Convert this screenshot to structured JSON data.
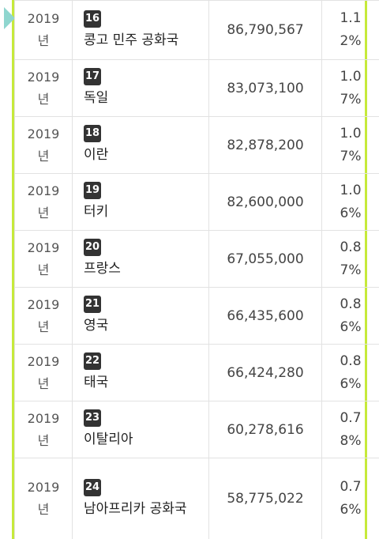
{
  "rows": [
    {
      "year": "2019",
      "year_suffix": "년",
      "rank": "16",
      "name": "콩고 민주 공화국",
      "population": "86,790,567",
      "pct_a": "1.1",
      "pct_b": "2%"
    },
    {
      "year": "2019",
      "year_suffix": "년",
      "rank": "17",
      "name": "독일",
      "population": "83,073,100",
      "pct_a": "1.0",
      "pct_b": "7%"
    },
    {
      "year": "2019",
      "year_suffix": "년",
      "rank": "18",
      "name": "이란",
      "population": "82,878,200",
      "pct_a": "1.0",
      "pct_b": "7%"
    },
    {
      "year": "2019",
      "year_suffix": "년",
      "rank": "19",
      "name": "터키",
      "population": "82,600,000",
      "pct_a": "1.0",
      "pct_b": "6%"
    },
    {
      "year": "2019",
      "year_suffix": "년",
      "rank": "20",
      "name": "프랑스",
      "population": "67,055,000",
      "pct_a": "0.8",
      "pct_b": "7%"
    },
    {
      "year": "2019",
      "year_suffix": "년",
      "rank": "21",
      "name": "영국",
      "population": "66,435,600",
      "pct_a": "0.8",
      "pct_b": "6%"
    },
    {
      "year": "2019",
      "year_suffix": "년",
      "rank": "22",
      "name": "태국",
      "population": "66,424,280",
      "pct_a": "0.8",
      "pct_b": "6%"
    },
    {
      "year": "2019",
      "year_suffix": "년",
      "rank": "23",
      "name": "이탈리아",
      "population": "60,278,616",
      "pct_a": "0.7",
      "pct_b": "8%"
    },
    {
      "year": "2019",
      "year_suffix": "년",
      "rank": "24",
      "name": "남아프리카 공화국",
      "population": "58,775,022",
      "pct_a": "0.7",
      "pct_b": "6%"
    }
  ],
  "colors": {
    "accent_border": "#c6ea3a",
    "marker": "#8fd6cf",
    "badge": "#333333"
  }
}
